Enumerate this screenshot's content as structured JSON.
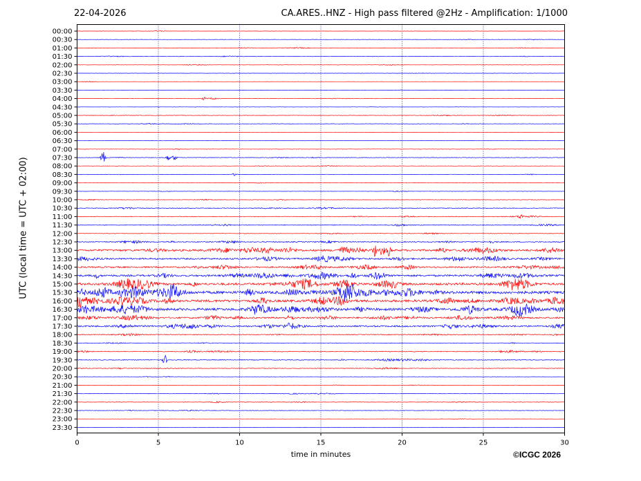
{
  "header": {
    "date": "22-04-2026",
    "title": "CA.ARES..HNZ - High pass filtered @2Hz - Amplification: 1/1000"
  },
  "copyright": "©ICGC 2026",
  "colors": {
    "trace_a": "#ff0000",
    "trace_b": "#0000ff",
    "grid": "#000080"
  },
  "chart_data": {
    "type": "line",
    "subtype": "helicorder",
    "title": "CA.ARES..HNZ - High pass filtered @2Hz - Amplification: 1/1000",
    "xlabel": "time in minutes",
    "ylabel": "UTC (local time = UTC + 02:00)",
    "xlim": [
      0,
      30
    ],
    "x_ticks": [
      0,
      5,
      10,
      15,
      20,
      25,
      30
    ],
    "grid": "vertical dotted lines at x ticks",
    "row_labels": [
      "00:00",
      "00:30",
      "01:00",
      "01:30",
      "02:00",
      "02:30",
      "03:00",
      "03:30",
      "04:00",
      "04:30",
      "05:00",
      "05:30",
      "06:00",
      "06:30",
      "07:00",
      "07:30",
      "08:00",
      "08:30",
      "09:00",
      "09:30",
      "10:00",
      "10:30",
      "11:00",
      "11:30",
      "12:00",
      "12:30",
      "13:00",
      "13:30",
      "14:00",
      "14:30",
      "15:00",
      "15:30",
      "16:00",
      "16:30",
      "17:00",
      "17:30",
      "18:00",
      "18:30",
      "19:00",
      "19:30",
      "20:00",
      "20:30",
      "21:00",
      "21:30",
      "22:00",
      "22:30",
      "23:00",
      "23:30"
    ],
    "row_colors": "alternating red (even rows) and blue (odd rows) starting with 00:00 red",
    "trace_amplitude_level": [
      0.3,
      0.4,
      0.5,
      0.5,
      0.4,
      0.3,
      0.3,
      0.3,
      0.4,
      0.3,
      0.5,
      0.5,
      0.3,
      0.3,
      0.4,
      0.6,
      0.4,
      0.4,
      0.4,
      0.4,
      0.5,
      0.8,
      0.7,
      0.9,
      0.6,
      1.1,
      2.4,
      1.9,
      1.8,
      2.3,
      2.7,
      3.4,
      3.0,
      3.0,
      1.9,
      2.0,
      0.9,
      0.6,
      0.9,
      0.9,
      0.7,
      0.4,
      0.4,
      0.5,
      0.6,
      0.5,
      0.3,
      0.3
    ],
    "events": [
      {
        "row": "04:00",
        "minute": 7.8,
        "amplitude": 1.5
      },
      {
        "row": "04:00",
        "minute": 8.4,
        "amplitude": 1.5
      },
      {
        "row": "07:30",
        "minute": 1.6,
        "amplitude": 10
      },
      {
        "row": "07:30",
        "minute": 5.6,
        "amplitude": 5
      },
      {
        "row": "07:30",
        "minute": 6.0,
        "amplitude": 5
      },
      {
        "row": "08:30",
        "minute": 9.7,
        "amplitude": 3
      },
      {
        "row": "11:00",
        "minute": 27.3,
        "amplitude": 3
      },
      {
        "row": "13:00",
        "minute": 18.3,
        "amplitude": 8
      },
      {
        "row": "13:00",
        "minute": 18.8,
        "amplitude": 10
      },
      {
        "row": "13:00",
        "minute": 19.2,
        "amplitude": 8
      },
      {
        "row": "14:30",
        "minute": 1.2,
        "amplitude": 4
      },
      {
        "row": "15:00",
        "minute": 7.2,
        "amplitude": 4
      },
      {
        "row": "15:30",
        "minute": 2.7,
        "amplitude": 4
      },
      {
        "row": "16:30",
        "minute": 0.5,
        "amplitude": 4
      },
      {
        "row": "19:30",
        "minute": 5.4,
        "amplitude": 7
      }
    ]
  }
}
